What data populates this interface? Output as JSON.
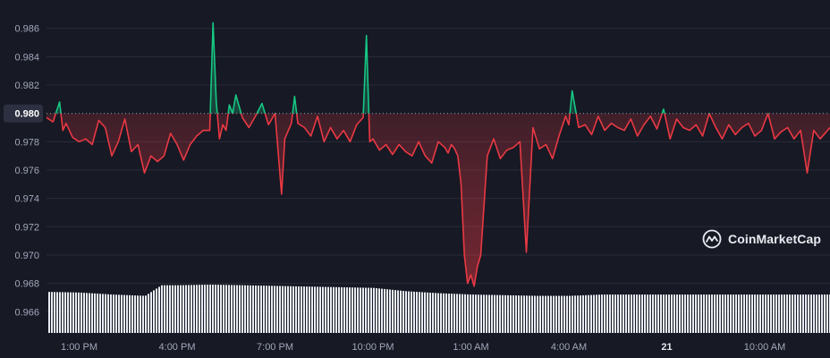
{
  "brand": {
    "name": "CoinMarketCap",
    "logo_icon": "coinmarketcap-logo-icon"
  },
  "colors": {
    "background": "#171924",
    "up": "#16c784",
    "down": "#ea3943",
    "grid": "#2a2d3a",
    "volume": "#e9ecf3",
    "axis_text": "#a1a7bb"
  },
  "chart_data": {
    "type": "line",
    "title": "",
    "xlabel": "",
    "ylabel": "",
    "ylim": [
      0.9645,
      0.9875
    ],
    "y_ticks": [
      "0.986",
      "0.984",
      "0.982",
      "0.980",
      "0.978",
      "0.976",
      "0.974",
      "0.972",
      "0.970",
      "0.968",
      "0.966"
    ],
    "x_ticks": [
      {
        "label": "1:00 PM",
        "t": 1.5
      },
      {
        "label": "4:00 PM",
        "t": 4.5
      },
      {
        "label": "7:00 PM",
        "t": 7.5
      },
      {
        "label": "10:00 PM",
        "t": 10.5
      },
      {
        "label": "1:00 AM",
        "t": 13.5
      },
      {
        "label": "4:00 AM",
        "t": 16.5
      },
      {
        "label": "21",
        "t": 19.5,
        "bold": true
      },
      {
        "label": "10:00 AM",
        "t": 22.5
      }
    ],
    "x_range": [
      0.5,
      24.5
    ],
    "reference": {
      "label": "0.980",
      "value": 0.98
    },
    "grid": true,
    "series": [
      {
        "x": [
          0.5,
          0.7,
          0.9,
          1.0,
          1.1,
          1.3,
          1.5,
          1.7,
          1.9,
          2.1,
          2.3,
          2.5,
          2.7,
          2.9,
          3.1,
          3.3,
          3.5,
          3.7,
          3.9,
          4.1,
          4.3,
          4.5,
          4.7,
          4.9,
          5.1,
          5.3,
          5.5,
          5.6,
          5.7,
          5.8,
          5.9,
          6.0,
          6.1,
          6.2,
          6.3,
          6.5,
          6.7,
          6.9,
          7.1,
          7.3,
          7.5,
          7.7,
          7.8,
          8.0,
          8.1,
          8.2,
          8.4,
          8.6,
          8.8,
          9.0,
          9.2,
          9.4,
          9.6,
          9.8,
          10.0,
          10.2,
          10.3,
          10.4,
          10.5,
          10.7,
          10.9,
          11.1,
          11.3,
          11.5,
          11.7,
          11.9,
          12.1,
          12.3,
          12.5,
          12.7,
          12.8,
          12.9,
          13.0,
          13.1,
          13.2,
          13.3,
          13.4,
          13.5,
          13.6,
          13.7,
          13.8,
          14.0,
          14.2,
          14.4,
          14.6,
          14.8,
          15.0,
          15.2,
          15.4,
          15.6,
          15.8,
          16.0,
          16.2,
          16.4,
          16.5,
          16.6,
          16.8,
          17.0,
          17.2,
          17.4,
          17.6,
          17.8,
          18.0,
          18.2,
          18.4,
          18.6,
          18.8,
          19.0,
          19.2,
          19.4,
          19.6,
          19.8,
          20.0,
          20.2,
          20.4,
          20.6,
          20.8,
          21.0,
          21.2,
          21.4,
          21.6,
          21.8,
          22.0,
          22.2,
          22.4,
          22.6,
          22.8,
          23.0,
          23.2,
          23.4,
          23.6,
          23.8,
          24.0,
          24.2,
          24.5
        ],
        "y": [
          0.9797,
          0.9794,
          0.9808,
          0.9788,
          0.9793,
          0.9783,
          0.978,
          0.9782,
          0.9778,
          0.9795,
          0.979,
          0.977,
          0.978,
          0.9796,
          0.9773,
          0.9778,
          0.9758,
          0.977,
          0.9766,
          0.977,
          0.9786,
          0.9778,
          0.9767,
          0.9778,
          0.9784,
          0.9788,
          0.9788,
          0.9864,
          0.9808,
          0.9782,
          0.9792,
          0.9788,
          0.9806,
          0.98,
          0.9813,
          0.9797,
          0.979,
          0.9798,
          0.9807,
          0.9792,
          0.98,
          0.9743,
          0.9782,
          0.9793,
          0.9812,
          0.9793,
          0.979,
          0.9784,
          0.9798,
          0.978,
          0.979,
          0.9782,
          0.9788,
          0.978,
          0.9792,
          0.9797,
          0.9855,
          0.978,
          0.9782,
          0.9774,
          0.9778,
          0.9771,
          0.9778,
          0.9773,
          0.977,
          0.978,
          0.977,
          0.9765,
          0.978,
          0.9776,
          0.9772,
          0.9778,
          0.9775,
          0.977,
          0.975,
          0.97,
          0.968,
          0.9686,
          0.9678,
          0.9692,
          0.97,
          0.977,
          0.9782,
          0.9768,
          0.9774,
          0.9776,
          0.978,
          0.9702,
          0.979,
          0.9775,
          0.9778,
          0.9768,
          0.9784,
          0.9798,
          0.9792,
          0.9816,
          0.979,
          0.9792,
          0.9785,
          0.9798,
          0.9788,
          0.9793,
          0.979,
          0.9788,
          0.9796,
          0.9784,
          0.9792,
          0.9798,
          0.9789,
          0.9803,
          0.9782,
          0.9796,
          0.979,
          0.9788,
          0.9792,
          0.9784,
          0.98,
          0.979,
          0.9782,
          0.9792,
          0.9785,
          0.979,
          0.9793,
          0.9784,
          0.9788,
          0.98,
          0.9782,
          0.9787,
          0.979,
          0.9782,
          0.9788,
          0.9758,
          0.9788,
          0.9782,
          0.979
        ],
        "color_above_reference": "#16c784",
        "color_below_reference": "#ea3943"
      }
    ],
    "volume": {
      "note_levels": "relative bar heights 0-1",
      "t": [
        0.5,
        1.5,
        2.5,
        3.5,
        4.0,
        4.5,
        5.5,
        6.5,
        7.5,
        8.5,
        9.5,
        10.5,
        11.5,
        12.5,
        13.5,
        14.5,
        15.5,
        16.5,
        17.5,
        18.5,
        19.5,
        20.5,
        21.5,
        22.5,
        23.5,
        24.5
      ],
      "levels": [
        0.62,
        0.61,
        0.58,
        0.56,
        0.72,
        0.72,
        0.73,
        0.72,
        0.71,
        0.7,
        0.69,
        0.68,
        0.63,
        0.6,
        0.58,
        0.57,
        0.56,
        0.56,
        0.58,
        0.58,
        0.58,
        0.58,
        0.58,
        0.58,
        0.58,
        0.58
      ]
    }
  }
}
